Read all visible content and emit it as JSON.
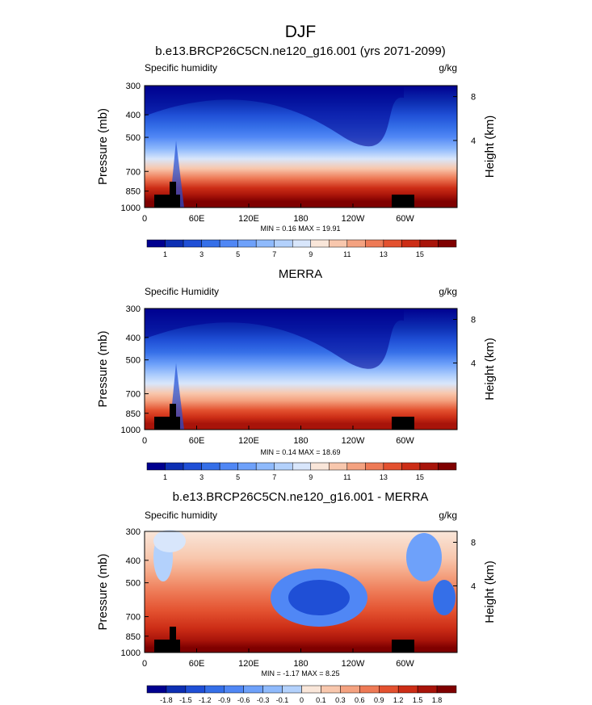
{
  "figure": {
    "title": "DJF"
  },
  "chart_data": [
    {
      "type": "heatmap",
      "title": "b.e13.BRCP26C5CN.ne120_g16.001 (yrs 2071-2099)",
      "variable": "Specific humidity",
      "units": "g/kg",
      "ylabel": "Pressure (mb)",
      "y2label": "Height (km)",
      "xticks": [
        "0",
        "60E",
        "120E",
        "180",
        "120W",
        "60W"
      ],
      "xtick_lon": [
        0,
        60,
        120,
        180,
        240,
        300
      ],
      "yticks": [
        300,
        400,
        500,
        700,
        850,
        1000
      ],
      "ylim": [
        1000,
        300
      ],
      "y2ticks": [
        "8",
        "4"
      ],
      "stats": "MIN =  0.16  MAX =  19.91",
      "min": 0.16,
      "max": 19.91,
      "colorbar_labels": [
        "1",
        "3",
        "5",
        "7",
        "9",
        "11",
        "13",
        "15"
      ],
      "colorbar_colors": [
        "#00008f",
        "#0d2fb3",
        "#1f4fd6",
        "#356fe8",
        "#5087f5",
        "#6ea1fa",
        "#8fbafc",
        "#b3d1fc",
        "#d8e6fb",
        "#f9e6d9",
        "#f8c7ad",
        "#f4a280",
        "#ee7a56",
        "#e3512f",
        "#cc2d16",
        "#a8140a",
        "#7f0000"
      ],
      "profile_description": "moist boundary layer, drier aloft; mid-troposphere humidity dips over the central Pacific"
    },
    {
      "type": "heatmap",
      "title": "MERRA",
      "variable": "Specific Humidity",
      "units": "g/kg",
      "ylabel": "Pressure (mb)",
      "y2label": "Height (km)",
      "xticks": [
        "0",
        "60E",
        "120E",
        "180",
        "120W",
        "60W"
      ],
      "xtick_lon": [
        0,
        60,
        120,
        180,
        240,
        300
      ],
      "yticks": [
        300,
        400,
        500,
        700,
        850,
        1000
      ],
      "ylim": [
        1000,
        300
      ],
      "y2ticks": [
        "8",
        "4"
      ],
      "stats": "MIN =  0.14  MAX =  18.69",
      "min": 0.14,
      "max": 18.69,
      "colorbar_labels": [
        "1",
        "3",
        "5",
        "7",
        "9",
        "11",
        "13",
        "15"
      ],
      "colorbar_colors": [
        "#00008f",
        "#0d2fb3",
        "#1f4fd6",
        "#356fe8",
        "#5087f5",
        "#6ea1fa",
        "#8fbafc",
        "#b3d1fc",
        "#d8e6fb",
        "#f9e6d9",
        "#f8c7ad",
        "#f4a280",
        "#ee7a56",
        "#e3512f",
        "#cc2d16",
        "#a8140a",
        "#7f0000"
      ]
    },
    {
      "type": "heatmap",
      "title": "b.e13.BRCP26C5CN.ne120_g16.001 - MERRA",
      "variable": "Specific humidity",
      "units": "g/kg",
      "ylabel": "Pressure (mb)",
      "y2label": "Height (km)",
      "xticks": [
        "0",
        "60E",
        "120E",
        "180",
        "120W",
        "60W"
      ],
      "xtick_lon": [
        0,
        60,
        120,
        180,
        240,
        300
      ],
      "yticks": [
        300,
        400,
        500,
        700,
        850,
        1000
      ],
      "ylim": [
        1000,
        300
      ],
      "y2ticks": [
        "8",
        "4"
      ],
      "stats": "MIN = -1.17  MAX =  8.25",
      "min": -1.17,
      "max": 8.25,
      "colorbar_labels": [
        "-1.8",
        "-1.5",
        "-1.2",
        "-0.9",
        "-0.6",
        "-0.3",
        "-0.1",
        "0",
        "0.1",
        "0.3",
        "0.6",
        "0.9",
        "1.2",
        "1.5",
        "1.8"
      ],
      "colorbar_colors": [
        "#00008f",
        "#0d2fb3",
        "#1f4fd6",
        "#356fe8",
        "#5087f5",
        "#6ea1fa",
        "#8fbafc",
        "#b3d1fc",
        "#f9e6d9",
        "#f8c7ad",
        "#f4a280",
        "#ee7a56",
        "#e3512f",
        "#cc2d16",
        "#a8140a",
        "#7f0000"
      ]
    }
  ]
}
